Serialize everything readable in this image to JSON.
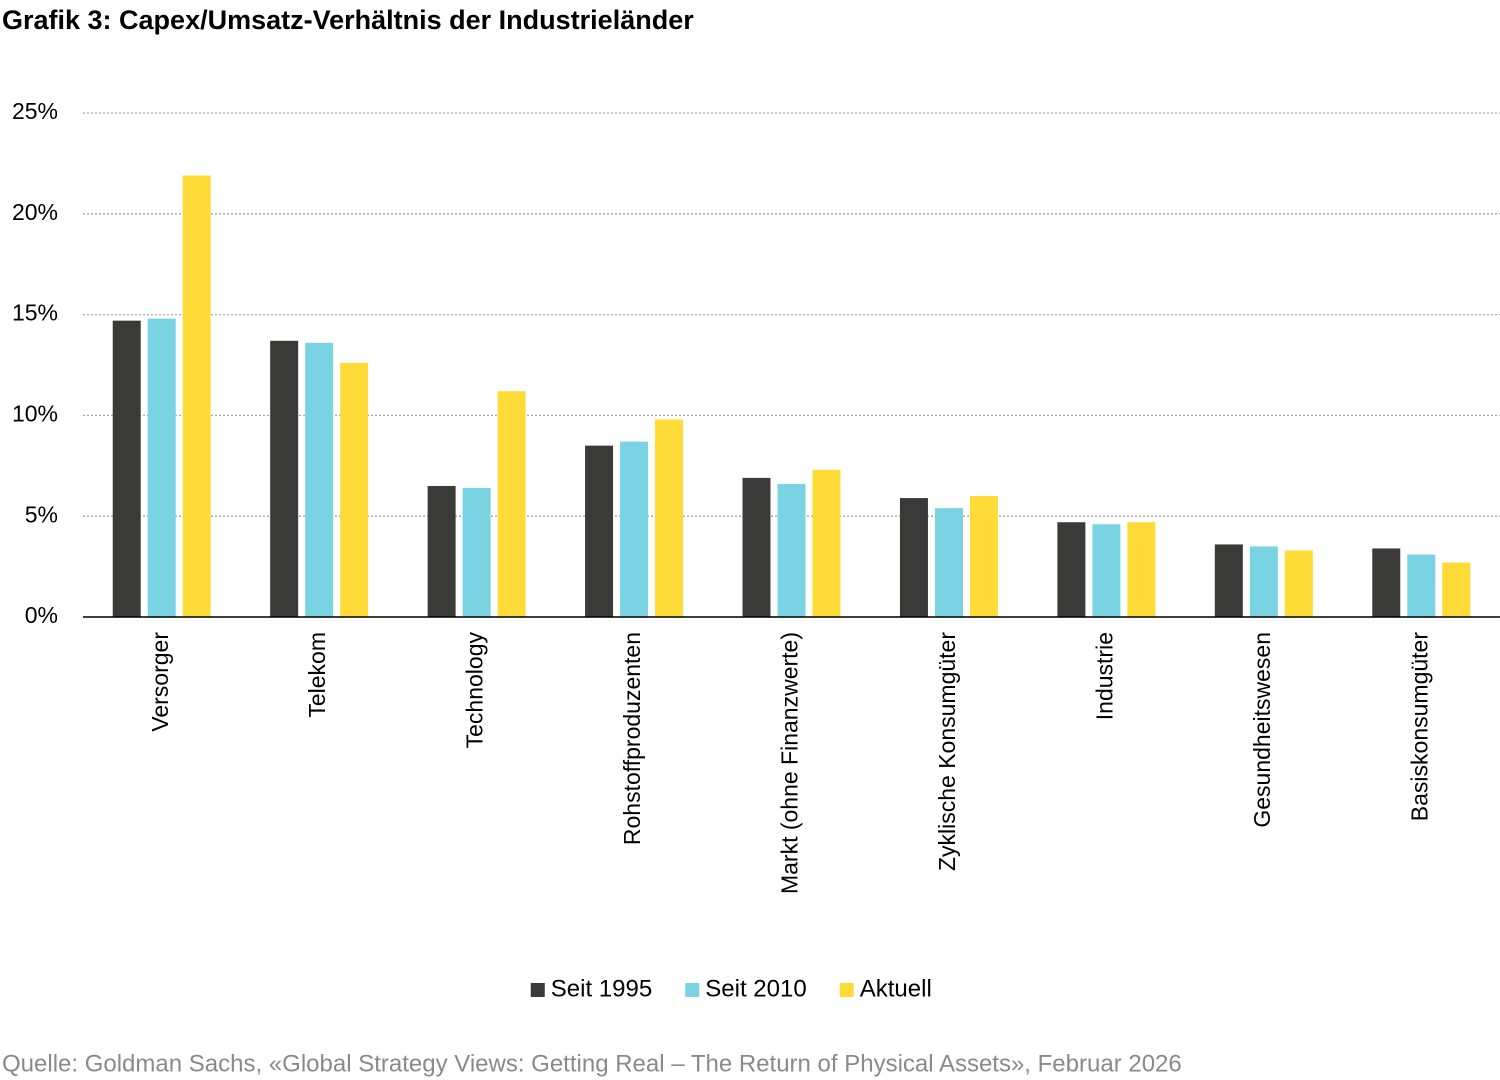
{
  "chart_data": {
    "type": "bar",
    "title": "Grafik 3: Capex/Umsatz-Verhältnis der Industrieländer",
    "source": "Quelle: Goldman Sachs, «Global Strategy Views: Getting Real – The Return of Physical Assets», Februar 2026",
    "categories": [
      "Versorger",
      "Telekom",
      "Technology",
      "Rohstoffproduzenten",
      "Markt (ohne Finanzwerte)",
      "Zyklische Konsumgüter",
      "Industrie",
      "Gesundheitswesen",
      "Basiskonsumgüter"
    ],
    "series": [
      {
        "name": "Seit 1995",
        "color": "#3a3b38",
        "values": [
          14.7,
          13.7,
          6.5,
          8.5,
          6.9,
          5.9,
          4.7,
          3.6,
          3.4
        ]
      },
      {
        "name": "Seit 2010",
        "color": "#7ad3e3",
        "values": [
          14.8,
          13.6,
          6.4,
          8.7,
          6.6,
          5.4,
          4.6,
          3.5,
          3.1
        ]
      },
      {
        "name": "Aktuell",
        "color": "#fedb37",
        "values": [
          21.9,
          12.6,
          11.2,
          9.8,
          7.3,
          6.0,
          4.7,
          3.3,
          2.7
        ]
      }
    ],
    "ylim": [
      0,
      25
    ],
    "yticks": [
      {
        "value": 0,
        "label": "0%"
      },
      {
        "value": 5,
        "label": "5%"
      },
      {
        "value": 10,
        "label": "10%"
      },
      {
        "value": 15,
        "label": "15%"
      },
      {
        "value": 20,
        "label": "20%"
      },
      {
        "value": 25,
        "label": "25%"
      }
    ],
    "grid": true,
    "legend": "bottom"
  }
}
